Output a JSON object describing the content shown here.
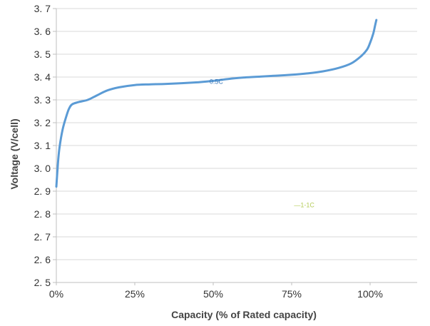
{
  "chart_data": {
    "type": "line",
    "title": "",
    "xlabel": "Capacity  (% of Rated capacity)",
    "ylabel": "Voltage  (V/cell)",
    "xlim": [
      0,
      115
    ],
    "ylim": [
      2.5,
      3.7
    ],
    "grid": "horizontal",
    "x_ticks": [
      {
        "value": 0,
        "label": "0%"
      },
      {
        "value": 25,
        "label": "25%"
      },
      {
        "value": 50,
        "label": "50%"
      },
      {
        "value": 75,
        "label": "75%"
      },
      {
        "value": 100,
        "label": "100%"
      }
    ],
    "y_ticks": [
      {
        "value": 2.5,
        "label": "2. 5"
      },
      {
        "value": 2.6,
        "label": "2. 6"
      },
      {
        "value": 2.7,
        "label": "2. 7"
      },
      {
        "value": 2.8,
        "label": "2. 8"
      },
      {
        "value": 2.9,
        "label": "2. 9"
      },
      {
        "value": 3.0,
        "label": "3. 0"
      },
      {
        "value": 3.1,
        "label": "3. 1"
      },
      {
        "value": 3.2,
        "label": "3. 2"
      },
      {
        "value": 3.3,
        "label": "3. 3"
      },
      {
        "value": 3.4,
        "label": "3. 4"
      },
      {
        "value": 3.5,
        "label": "3. 5"
      },
      {
        "value": 3.6,
        "label": "3. 6"
      },
      {
        "value": 3.7,
        "label": "3. 7"
      }
    ],
    "series": [
      {
        "name": "0.5C",
        "color": "#5b9bd5",
        "x": [
          0,
          0.5,
          1,
          2,
          3,
          4,
          5,
          7,
          10,
          13,
          16,
          20,
          25,
          30,
          35,
          40,
          45,
          50,
          55,
          60,
          65,
          70,
          75,
          80,
          85,
          90,
          94,
          97,
          99,
          100,
          101,
          101.5,
          102
        ],
        "y": [
          2.92,
          3.02,
          3.09,
          3.17,
          3.22,
          3.26,
          3.28,
          3.29,
          3.3,
          3.32,
          3.34,
          3.355,
          3.365,
          3.368,
          3.37,
          3.373,
          3.377,
          3.383,
          3.392,
          3.398,
          3.402,
          3.406,
          3.41,
          3.416,
          3.425,
          3.44,
          3.46,
          3.49,
          3.52,
          3.55,
          3.59,
          3.62,
          3.65
        ]
      }
    ],
    "annotations": [
      {
        "text": "0.5C",
        "x": 51,
        "y": 3.37,
        "color": "#3a78b8"
      },
      {
        "text": "—1-1C",
        "x": 79,
        "y": 2.83,
        "color": "#b5cc5a"
      }
    ]
  }
}
